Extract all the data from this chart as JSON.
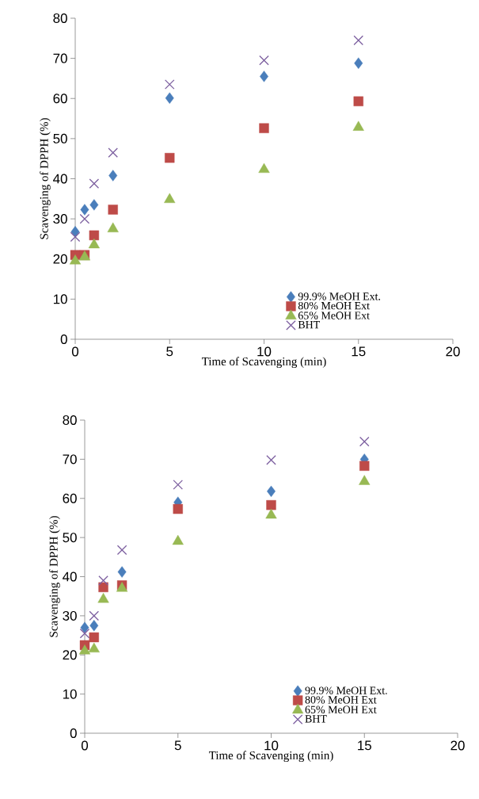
{
  "chart_data": [
    {
      "type": "scatter",
      "xlabel": "Time of Scavenging (min)",
      "ylabel": "Scavenging of DPPH (%)",
      "x": [
        0,
        0.5,
        1,
        2,
        5,
        10,
        15
      ],
      "xlim": [
        0,
        20
      ],
      "xticks": [
        0,
        5,
        10,
        15,
        20
      ],
      "ylim": [
        0,
        80
      ],
      "yticks": [
        0,
        10,
        20,
        30,
        40,
        50,
        60,
        70,
        80
      ],
      "legend": "bottom right",
      "series": [
        {
          "name": "99.9% MeOH Ext.",
          "color": "#4a7ebb",
          "marker": "diamond",
          "values": [
            26.8,
            32.3,
            33.5,
            40.8,
            60.1,
            65.5,
            68.8
          ]
        },
        {
          "name": "80% MeOH Ext",
          "color": "#be4b48",
          "marker": "square",
          "values": [
            21,
            21,
            25.9,
            32.3,
            45.2,
            52.6,
            59.3
          ]
        },
        {
          "name": "65% MeOH Ext",
          "color": "#98b954",
          "marker": "triangle",
          "values": [
            19.5,
            20.5,
            23.5,
            27.5,
            34.8,
            42.3,
            52.8
          ]
        },
        {
          "name": "BHT",
          "color": "#7d60a0",
          "marker": "cross",
          "values": [
            25.5,
            30,
            38.8,
            46.5,
            63.5,
            69.5,
            74.5
          ]
        }
      ]
    },
    {
      "type": "scatter",
      "xlabel": "Time of Scavenging (min)",
      "ylabel": "Scavenging of DPPH (%)",
      "x": [
        0,
        0.5,
        1,
        2,
        5,
        10,
        15
      ],
      "xlim": [
        0,
        20
      ],
      "xticks": [
        0,
        5,
        10,
        15,
        20
      ],
      "ylim": [
        0,
        80
      ],
      "yticks": [
        0,
        10,
        20,
        30,
        40,
        50,
        60,
        70,
        80
      ],
      "legend": "bottom right",
      "series": [
        {
          "name": "99.9% MeOH Ext.",
          "color": "#4a7ebb",
          "marker": "diamond",
          "values": [
            27,
            27.5,
            null,
            41.2,
            59,
            61.8,
            70
          ]
        },
        {
          "name": "80% MeOH Ext",
          "color": "#be4b48",
          "marker": "square",
          "values": [
            22.5,
            24.5,
            37.3,
            37.8,
            57.3,
            58.3,
            68.3
          ]
        },
        {
          "name": "65% MeOH Ext",
          "color": "#98b954",
          "marker": "triangle",
          "values": [
            21,
            21.5,
            34.2,
            37,
            49,
            55.7,
            64.3
          ]
        },
        {
          "name": "BHT",
          "color": "#7d60a0",
          "marker": "cross",
          "values": [
            25.5,
            30,
            39,
            46.8,
            63.5,
            69.8,
            74.5
          ]
        }
      ]
    }
  ]
}
